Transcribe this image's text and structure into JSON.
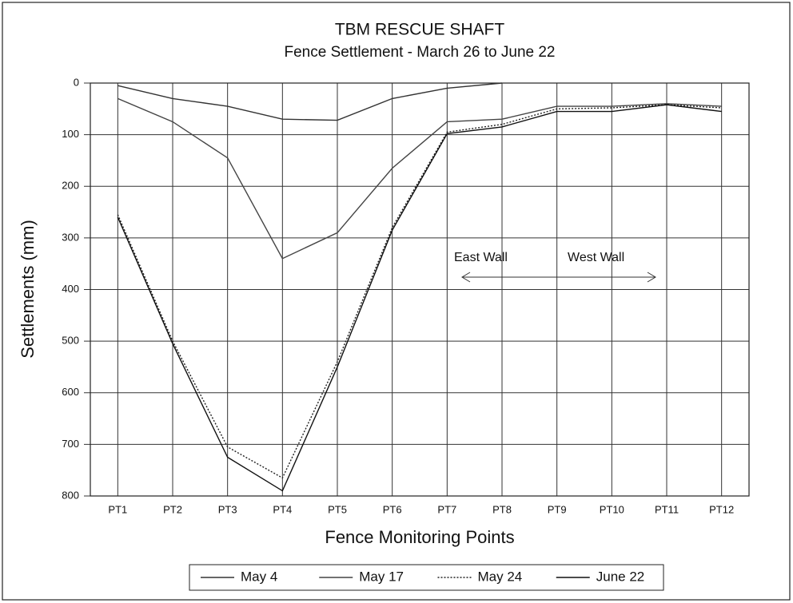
{
  "chart_data": {
    "type": "line",
    "title": "TBM RESCUE SHAFT",
    "subtitle": "Fence Settlement - March 26 to June 22",
    "x_label": "Fence Monitoring Points",
    "y_label": "Settlements (mm)",
    "categories": [
      "PT1",
      "PT2",
      "PT3",
      "PT4",
      "PT5",
      "PT6",
      "PT7",
      "PT8",
      "PT9",
      "PT10",
      "PT11",
      "PT12"
    ],
    "series": [
      {
        "name": "May 4",
        "color": "#333333",
        "style": "solid",
        "values": [
          5,
          30,
          45,
          70,
          72,
          30,
          10,
          0,
          null,
          null,
          null,
          null
        ]
      },
      {
        "name": "May 17",
        "color": "#444444",
        "style": "solid",
        "values": [
          30,
          75,
          145,
          340,
          290,
          165,
          75,
          70,
          45,
          45,
          40,
          45
        ]
      },
      {
        "name": "May 24",
        "color": "#222222",
        "style": "dotted",
        "values": [
          255,
          500,
          705,
          765,
          540,
          280,
          95,
          80,
          50,
          48,
          42,
          48
        ]
      },
      {
        "name": "June 22",
        "color": "#111111",
        "style": "solid",
        "values": [
          260,
          505,
          725,
          790,
          550,
          285,
          98,
          85,
          55,
          55,
          42,
          55
        ]
      }
    ],
    "annotations": [
      "East  Wall",
      "West Wall"
    ],
    "ylim": [
      0,
      800
    ],
    "y_inverted": true,
    "yticks": [
      0,
      100,
      200,
      300,
      400,
      500,
      600,
      700,
      800
    ],
    "grid": true,
    "legend": "bottom"
  }
}
